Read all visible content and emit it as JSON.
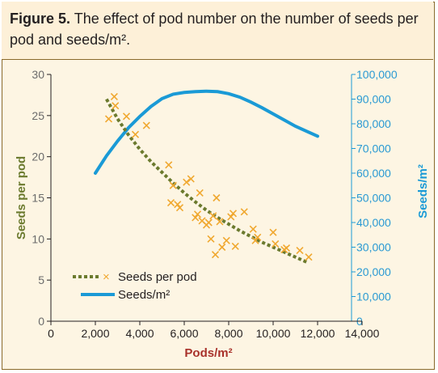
{
  "figure": {
    "label": "Figure 5.",
    "title": "The effect of pod number on the number of seeds per pod and seeds/m²."
  },
  "colors": {
    "seeds_per_pod": "#6b7a2e",
    "markers": "#f0a830",
    "seeds_m2": "#1a9ad6",
    "axis_left": "#6b7a2e",
    "axis_right": "#1a9ad6"
  },
  "chart_data": {
    "type": "scatter",
    "xlabel": "Pods/m²",
    "ylabel_left": "Seeds per pod",
    "ylabel_right": "Seeds/m²",
    "xlim": [
      0,
      14000
    ],
    "ylim_left": [
      0,
      30
    ],
    "ylim_right": [
      0,
      100000
    ],
    "x_ticks": [
      "0",
      "2,000",
      "4,000",
      "6,000",
      "8,000",
      "10,000",
      "12,000",
      "14,000"
    ],
    "y_left_ticks": [
      "0",
      "5",
      "10",
      "15",
      "20",
      "25",
      "30"
    ],
    "y_right_ticks": [
      "0",
      "10,000",
      "20,000",
      "30,000",
      "40,000",
      "50,000",
      "60,000",
      "70,000",
      "80,000",
      "90,000",
      "100,000"
    ],
    "legend": [
      "Seeds per pod",
      "Seeds/m²"
    ],
    "series": [
      {
        "name": "Seeds per pod",
        "kind": "scatter",
        "points": [
          [
            2600,
            24.6
          ],
          [
            2850,
            27.3
          ],
          [
            2900,
            26.2
          ],
          [
            3400,
            24.9
          ],
          [
            3800,
            22.7
          ],
          [
            4300,
            23.8
          ],
          [
            5300,
            19.0
          ],
          [
            5400,
            14.4
          ],
          [
            5500,
            16.5
          ],
          [
            5700,
            14.2
          ],
          [
            5800,
            13.8
          ],
          [
            6100,
            16.9
          ],
          [
            6300,
            17.3
          ],
          [
            6500,
            12.6
          ],
          [
            6600,
            13.0
          ],
          [
            6700,
            15.6
          ],
          [
            6800,
            12.2
          ],
          [
            7000,
            11.7
          ],
          [
            7100,
            12.0
          ],
          [
            7200,
            10.0
          ],
          [
            7300,
            12.8
          ],
          [
            7400,
            8.1
          ],
          [
            7450,
            15.0
          ],
          [
            7600,
            12.1
          ],
          [
            7700,
            9.0
          ],
          [
            7900,
            9.8
          ],
          [
            8100,
            12.7
          ],
          [
            8200,
            13.1
          ],
          [
            8300,
            9.1
          ],
          [
            8700,
            13.3
          ],
          [
            9100,
            11.2
          ],
          [
            9200,
            9.8
          ],
          [
            9300,
            10.2
          ],
          [
            10000,
            10.8
          ],
          [
            10100,
            9.4
          ],
          [
            10500,
            8.7
          ],
          [
            10600,
            8.9
          ],
          [
            11200,
            8.6
          ],
          [
            11600,
            7.8
          ]
        ]
      },
      {
        "name": "Seeds per pod trend",
        "kind": "dotted-line",
        "points": [
          [
            2500,
            27.0
          ],
          [
            3000,
            24.6
          ],
          [
            3500,
            22.6
          ],
          [
            4000,
            20.9
          ],
          [
            4500,
            19.4
          ],
          [
            5000,
            18.1
          ],
          [
            5500,
            16.8
          ],
          [
            6000,
            15.6
          ],
          [
            6500,
            14.5
          ],
          [
            7000,
            13.5
          ],
          [
            7500,
            12.6
          ],
          [
            8000,
            11.8
          ],
          [
            8500,
            11.0
          ],
          [
            9000,
            10.3
          ],
          [
            9500,
            9.6
          ],
          [
            10000,
            9.0
          ],
          [
            10500,
            8.4
          ],
          [
            11000,
            7.8
          ],
          [
            11500,
            7.2
          ]
        ]
      },
      {
        "name": "Seeds/m²",
        "kind": "line",
        "points": [
          [
            2000,
            60000
          ],
          [
            2500,
            67000
          ],
          [
            3000,
            73000
          ],
          [
            3500,
            78500
          ],
          [
            4000,
            83000
          ],
          [
            4500,
            87000
          ],
          [
            5000,
            90200
          ],
          [
            5500,
            92000
          ],
          [
            6000,
            92700
          ],
          [
            6500,
            93000
          ],
          [
            7000,
            93200
          ],
          [
            7500,
            93000
          ],
          [
            8000,
            92200
          ],
          [
            8500,
            90800
          ],
          [
            9000,
            88800
          ],
          [
            9500,
            86500
          ],
          [
            10000,
            84000
          ],
          [
            10500,
            81500
          ],
          [
            11000,
            79000
          ],
          [
            11500,
            77000
          ],
          [
            12000,
            75000
          ]
        ]
      }
    ]
  }
}
